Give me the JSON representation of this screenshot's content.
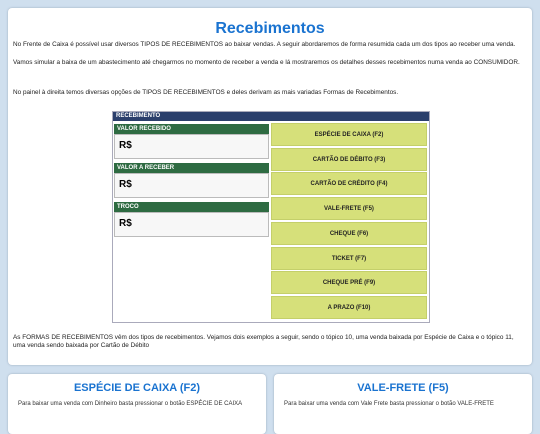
{
  "header": {
    "title": "Recebimentos"
  },
  "intro": [
    "No Frente de Caixa é possível usar diversos TIPOS DE RECEBIMENTOS ao baixar vendas. A seguir abordaremos de forma resumida cada um dos tipos ao receber uma venda.",
    "Vamos simular a baixa de um abastecimento até chegarmos no momento de receber a venda e lá mostraremos os detalhes desses recebimentos numa venda ao CONSUMIDOR.",
    "No painel à direita temos diversas opções de TIPOS DE RECEBIMENTOS e deles derivam as mais variadas Formas de Recebimentos."
  ],
  "panel": {
    "title": "RECEBIMENTO",
    "fields": [
      {
        "label": "VALOR RECEBIDO",
        "value": "R$"
      },
      {
        "label": "VALOR A RECEBER",
        "value": "R$"
      },
      {
        "label": "TROCO",
        "value": "R$"
      }
    ],
    "buttons": [
      "ESPÉCIE DE CAIXA (F2)",
      "CARTÃO DE DÉBITO (F3)",
      "CARTÃO DE CRÉDITO (F4)",
      "VALE-FRETE (F5)",
      "CHEQUE (F6)",
      "TICKET (F7)",
      "CHEQUE PRÉ (F9)",
      "A PRAZO (F10)"
    ]
  },
  "outro": "As FORMAS DE RECEBIMENTOS vêm dos tipos de recebimentos. Vejamos dois exemplos a seguir, sendo o tópico 10, uma venda baixada por Espécie de Caixa e o tópico 11, uma venda sendo baixada por Cartão de Débito",
  "cards": [
    {
      "title": "ESPÉCIE DE CAIXA (F2)",
      "text": "Para baixar uma venda com Dinheiro basta pressionar o botão ESPÉCIE DE CAIXA"
    },
    {
      "title": "VALE-FRETE (F5)",
      "text": "Para baixar uma venda com Vale Frete basta pressionar o botão VALE-FRETE"
    }
  ]
}
